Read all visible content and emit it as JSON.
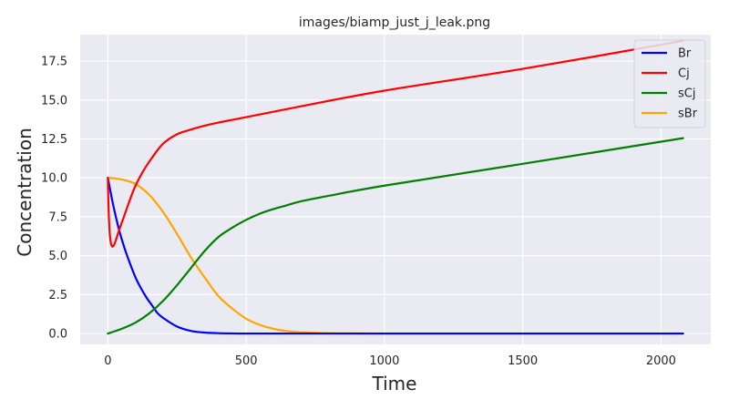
{
  "chart_data": {
    "type": "line",
    "title": "images/biamp_just_j_leak.png",
    "xlabel": "Time",
    "ylabel": "Concentration",
    "xlim": [
      -100,
      2180
    ],
    "ylim": [
      -0.7,
      19.2
    ],
    "xticks": [
      0,
      500,
      1000,
      1500,
      2000
    ],
    "yticks": [
      0.0,
      2.5,
      5.0,
      7.5,
      10.0,
      12.5,
      15.0,
      17.5
    ],
    "xtick_labels": [
      "0",
      "500",
      "1000",
      "1500",
      "2000"
    ],
    "ytick_labels": [
      "0.0",
      "2.5",
      "5.0",
      "7.5",
      "10.0",
      "12.5",
      "15.0",
      "17.5"
    ],
    "grid": true,
    "legend_position": "top-right",
    "series": [
      {
        "name": "Br",
        "color": "#0000ff",
        "x": [
          0,
          20,
          40,
          60,
          80,
          100,
          120,
          140,
          160,
          180,
          200,
          250,
          300,
          350,
          400,
          500,
          700,
          1000,
          1500,
          2080
        ],
        "y": [
          10.0,
          8.2,
          6.7,
          5.5,
          4.5,
          3.6,
          2.9,
          2.3,
          1.8,
          1.3,
          1.0,
          0.45,
          0.17,
          0.06,
          0.02,
          0.0,
          0.0,
          0.0,
          0.0,
          0.0
        ]
      },
      {
        "name": "Cj",
        "color": "#ff0000",
        "x": [
          0,
          3,
          8,
          15,
          25,
          40,
          60,
          80,
          100,
          130,
          160,
          200,
          250,
          300,
          350,
          400,
          500,
          700,
          1000,
          1500,
          2080
        ],
        "y": [
          10.0,
          7.8,
          6.2,
          5.6,
          5.8,
          6.6,
          7.6,
          8.6,
          9.5,
          10.5,
          11.3,
          12.2,
          12.8,
          13.1,
          13.35,
          13.55,
          13.9,
          14.6,
          15.6,
          17.0,
          18.8
        ]
      },
      {
        "name": "sCj",
        "color": "#008000",
        "x": [
          0,
          50,
          100,
          150,
          200,
          250,
          300,
          350,
          400,
          450,
          500,
          550,
          600,
          650,
          700,
          800,
          1000,
          1500,
          2080
        ],
        "y": [
          0.0,
          0.3,
          0.7,
          1.3,
          2.1,
          3.1,
          4.2,
          5.3,
          6.2,
          6.8,
          7.3,
          7.7,
          8.0,
          8.25,
          8.5,
          8.85,
          9.5,
          10.9,
          12.55
        ]
      },
      {
        "name": "sBr",
        "color": "#ffa500",
        "x": [
          0,
          50,
          100,
          150,
          200,
          250,
          300,
          350,
          400,
          450,
          500,
          550,
          600,
          650,
          700,
          800,
          1000,
          1500,
          2080
        ],
        "y": [
          10.0,
          9.9,
          9.6,
          8.9,
          7.8,
          6.4,
          4.9,
          3.6,
          2.4,
          1.6,
          0.95,
          0.55,
          0.3,
          0.15,
          0.08,
          0.02,
          0.0,
          0.0,
          0.0
        ]
      }
    ]
  }
}
